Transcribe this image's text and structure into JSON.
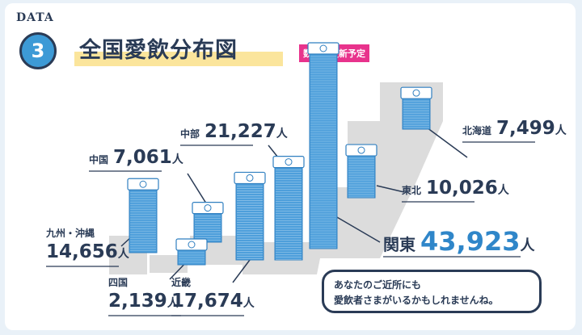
{
  "header": {
    "badge_label": "DATA",
    "badge_number": "3",
    "title": "全国愛飲分布図",
    "tag": "数値は更新予定"
  },
  "unit": "人",
  "colors": {
    "stack": "#4e9fdb",
    "stack_dark": "#2f7fc0",
    "accent": "#2f86c9",
    "navy": "#2a3b56",
    "map": "#dcdcdc",
    "highlight": "#fbe59c",
    "tag": "#e8338c"
  },
  "chart_data": {
    "type": "bar",
    "title": "全国愛飲分布図",
    "categories": [
      "北海道",
      "東北",
      "関東",
      "中部",
      "近畿",
      "中国",
      "四国",
      "九州・沖縄"
    ],
    "values": [
      7499,
      10026,
      43923,
      21227,
      17674,
      7061,
      2139,
      14656
    ],
    "display_values": [
      "7,499",
      "10,026",
      "43,923",
      "21,227",
      "17,674",
      "7,061",
      "2,139",
      "14,656"
    ]
  },
  "callout": {
    "line1": "あなたのご近所にも",
    "line2": "愛飲者さまがいるかもしれませんね。"
  }
}
